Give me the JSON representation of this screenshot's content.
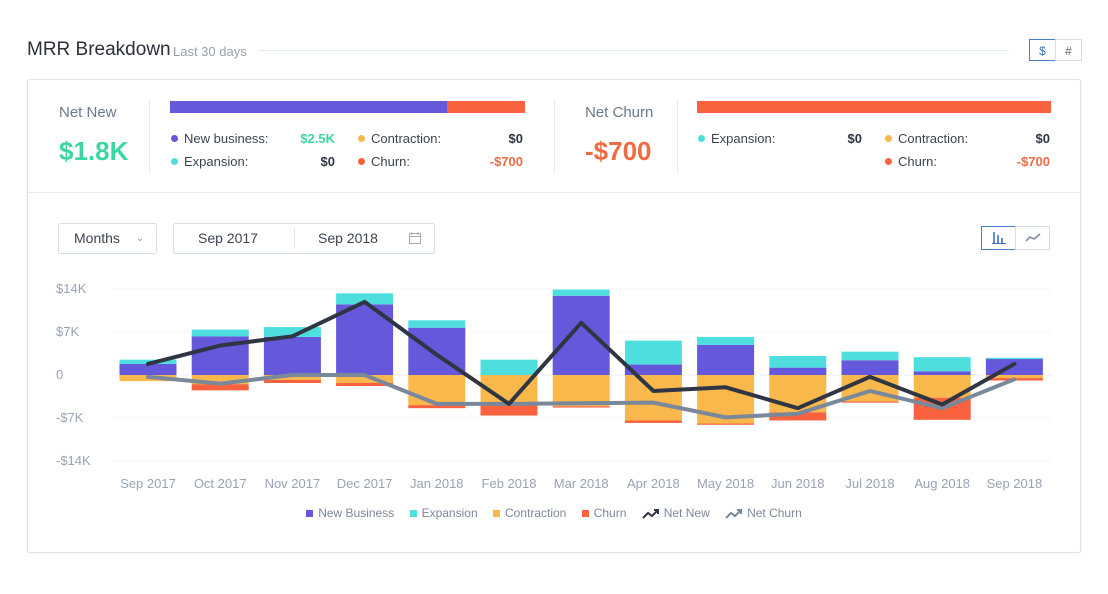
{
  "header": {
    "title": "MRR Breakdown",
    "subtitle": "Last 30 days",
    "unit_dollar": "$",
    "unit_count": "#"
  },
  "summary": {
    "net_new": {
      "label": "Net New",
      "value": "$1.8K",
      "bar": {
        "new_business_share": 0.78,
        "churn_share": 0.22
      },
      "items": {
        "new_business": {
          "label": "New business:",
          "value": "$2.5K"
        },
        "expansion": {
          "label": "Expansion:",
          "value": "$0"
        },
        "contraction": {
          "label": "Contraction:",
          "value": "$0"
        },
        "churn": {
          "label": "Churn:",
          "value": "-$700"
        }
      }
    },
    "net_churn": {
      "label": "Net Churn",
      "value": "-$700",
      "bar": {
        "churn_share": 1.0
      },
      "items": {
        "expansion": {
          "label": "Expansion:",
          "value": "$0"
        },
        "contraction": {
          "label": "Contraction:",
          "value": "$0"
        },
        "churn": {
          "label": "Churn:",
          "value": "-$700"
        }
      }
    }
  },
  "controls": {
    "period": "Months",
    "date_from": "Sep 2017",
    "date_to": "Sep 2018",
    "chart_type_bar_icon": "bar-chart-icon",
    "chart_type_line_icon": "line-chart-icon"
  },
  "colors": {
    "new_business": "#6558db",
    "expansion": "#4fdede",
    "contraction": "#f8b84b",
    "churn": "#f8623e",
    "net_new": "#2f3542",
    "net_churn": "#7a889c",
    "positive": "#3ed6a0",
    "negative": "#f06a43"
  },
  "chart_data": {
    "type": "bar",
    "stacked": true,
    "categories": [
      "Sep 2017",
      "Oct 2017",
      "Nov 2017",
      "Dec 2017",
      "Jan 2018",
      "Feb 2018",
      "Mar 2018",
      "Apr 2018",
      "May 2018",
      "Jun 2018",
      "Jul 2018",
      "Aug 2018",
      "Sep 2018"
    ],
    "y_ticks": [
      "$14K",
      "$7K",
      "0",
      "-$7K",
      "-$14K"
    ],
    "y_tick_values": [
      14000,
      7000,
      0,
      -7000,
      -14000
    ],
    "ylim": [
      -14000,
      14000
    ],
    "series": [
      {
        "name": "New Business",
        "kind": "bar",
        "values": [
          1800,
          6300,
          6200,
          11500,
          7700,
          0,
          12900,
          1700,
          4900,
          1200,
          2400,
          600,
          2600
        ]
      },
      {
        "name": "Expansion",
        "kind": "bar",
        "values": [
          700,
          1100,
          1600,
          1800,
          1200,
          2500,
          1000,
          3900,
          1300,
          1900,
          1400,
          2300,
          200
        ]
      },
      {
        "name": "Contraction",
        "kind": "bar",
        "values": [
          -1000,
          -1500,
          -800,
          -1300,
          -4900,
          -4600,
          -5100,
          -7400,
          -7900,
          -6100,
          -4300,
          -3700,
          -500
        ]
      },
      {
        "name": "Churn",
        "kind": "bar",
        "values": [
          0,
          -1000,
          -500,
          -500,
          -500,
          -2000,
          -200,
          -400,
          -200,
          -1300,
          -200,
          -3600,
          -400
        ]
      },
      {
        "name": "Net New",
        "kind": "line",
        "values": [
          1800,
          4800,
          6300,
          11900,
          3300,
          -4700,
          8500,
          -2600,
          -2000,
          -5400,
          -300,
          -4800,
          1800
        ]
      },
      {
        "name": "Net Churn",
        "kind": "line",
        "values": [
          -300,
          -1400,
          0,
          0,
          -4700,
          -4700,
          -4600,
          -4500,
          -6900,
          -6300,
          -2600,
          -5400,
          -700
        ]
      }
    ],
    "legend": [
      "New Business",
      "Expansion",
      "Contraction",
      "Churn",
      "Net New",
      "Net Churn"
    ],
    "legend_position": "bottom-center",
    "grid": true
  }
}
